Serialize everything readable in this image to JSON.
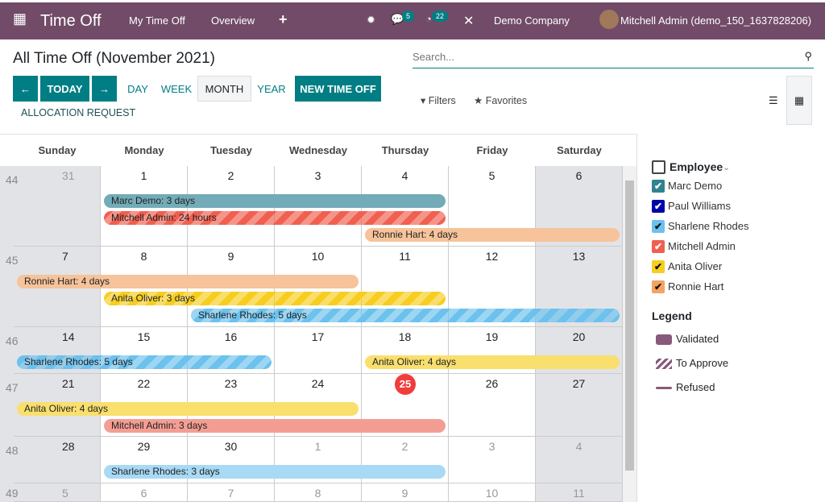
{
  "navbar": {
    "app": "Time Off",
    "menu": [
      "My Time Off",
      "Overview",
      "+"
    ],
    "messages": "5",
    "activities": "22",
    "company": "Demo Company",
    "user": "Mitchell Admin (demo_150_1637828206)"
  },
  "page": {
    "title": "All Time Off (November 2021)"
  },
  "toolbar": {
    "prev": "←",
    "today": "TODAY",
    "next": "→",
    "views": [
      "DAY",
      "WEEK",
      "MONTH",
      "YEAR"
    ],
    "active_view": "MONTH",
    "new": "NEW TIME OFF",
    "allocation": "ALLOCATION REQUEST"
  },
  "search": {
    "placeholder": "Search...",
    "filters": "Filters",
    "favorites": "Favorites"
  },
  "calendar": {
    "weekdays": [
      "Sunday",
      "Monday",
      "Tuesday",
      "Wednesday",
      "Thursday",
      "Friday",
      "Saturday"
    ],
    "today": 25,
    "weeks": [
      {
        "number": "44",
        "days": [
          [
            31,
            true
          ],
          [
            1,
            false
          ],
          [
            2,
            false
          ],
          [
            3,
            false
          ],
          [
            4,
            false
          ],
          [
            5,
            false
          ],
          [
            6,
            false
          ]
        ]
      },
      {
        "number": "45",
        "days": [
          [
            7,
            false
          ],
          [
            8,
            false
          ],
          [
            9,
            false
          ],
          [
            10,
            false
          ],
          [
            11,
            false
          ],
          [
            12,
            false
          ],
          [
            13,
            false
          ]
        ]
      },
      {
        "number": "46",
        "days": [
          [
            14,
            false
          ],
          [
            15,
            false
          ],
          [
            16,
            false
          ],
          [
            17,
            false
          ],
          [
            18,
            false
          ],
          [
            19,
            false
          ],
          [
            20,
            false
          ]
        ]
      },
      {
        "number": "47",
        "days": [
          [
            21,
            false
          ],
          [
            22,
            false
          ],
          [
            23,
            false
          ],
          [
            24,
            false
          ],
          [
            25,
            false
          ],
          [
            26,
            false
          ],
          [
            27,
            false
          ]
        ]
      },
      {
        "number": "48",
        "days": [
          [
            28,
            false
          ],
          [
            29,
            false
          ],
          [
            30,
            false
          ],
          [
            1,
            true
          ],
          [
            2,
            true
          ],
          [
            3,
            true
          ],
          [
            4,
            true
          ]
        ]
      },
      {
        "number": "49",
        "days": [
          [
            5,
            true
          ],
          [
            6,
            true
          ],
          [
            7,
            true
          ],
          [
            8,
            true
          ],
          [
            9,
            true
          ],
          [
            10,
            true
          ],
          [
            11,
            true
          ]
        ]
      }
    ],
    "events": [
      {
        "label": "Marc Demo: 3 days",
        "week": 0,
        "start": 1,
        "days": 4,
        "lane": 0,
        "color": "#73abb8",
        "striped": false
      },
      {
        "label": "Mitchell Admin: 24 hours",
        "week": 0,
        "start": 1,
        "days": 4,
        "lane": 1,
        "color": "#f06050",
        "striped": true
      },
      {
        "label": "Ronnie Hart: 4 days",
        "week": 0,
        "start": 4,
        "days": 3,
        "lane": 2,
        "color": "#f6c39a",
        "striped": false
      },
      {
        "label": "Ronnie Hart: 4 days",
        "week": 1,
        "start": 0,
        "days": 4,
        "lane": 0,
        "color": "#f6c39a",
        "striped": false
      },
      {
        "label": "Anita Oliver: 3 days",
        "week": 1,
        "start": 1,
        "days": 4,
        "lane": 1,
        "color": "#f7cd1f",
        "striped": true
      },
      {
        "label": "Sharlene Rhodes: 5 days",
        "week": 1,
        "start": 2,
        "days": 5,
        "lane": 2,
        "color": "#6cc1ed",
        "striped": true
      },
      {
        "label": "Sharlene Rhodes: 5 days",
        "week": 2,
        "start": 0,
        "days": 3,
        "lane": 0,
        "color": "#6cc1ed",
        "striped": true
      },
      {
        "label": "Anita Oliver: 4 days",
        "week": 2,
        "start": 4,
        "days": 3,
        "lane": 0,
        "color": "#f9df6e",
        "striped": false
      },
      {
        "label": "Anita Oliver: 4 days",
        "week": 3,
        "start": 0,
        "days": 4,
        "lane": 0,
        "color": "#f9df6e",
        "striped": false
      },
      {
        "label": "Mitchell Admin: 3 days",
        "week": 3,
        "start": 1,
        "days": 4,
        "lane": 1,
        "color": "#f49e93",
        "striped": false
      },
      {
        "label": "Sharlene Rhodes: 3 days",
        "week": 4,
        "start": 1,
        "days": 4,
        "lane": 0,
        "color": "#a8d9f5",
        "striped": false
      }
    ]
  },
  "filters": {
    "title": "Employee",
    "employees": [
      {
        "name": "Marc Demo",
        "color": "#30838f",
        "check": "#fff"
      },
      {
        "name": "Paul Williams",
        "color": "#0000a8",
        "check": "#fff"
      },
      {
        "name": "Sharlene Rhodes",
        "color": "#6cc1ed",
        "check": "#111"
      },
      {
        "name": "Mitchell Admin",
        "color": "#f06050",
        "check": "#fff"
      },
      {
        "name": "Anita Oliver",
        "color": "#f7cd1f",
        "check": "#111"
      },
      {
        "name": "Ronnie Hart",
        "color": "#f4a460",
        "check": "#111"
      }
    ]
  },
  "legend": {
    "title": "Legend",
    "items": [
      "Validated",
      "To Approve",
      "Refused"
    ],
    "color": "#875a7b"
  }
}
